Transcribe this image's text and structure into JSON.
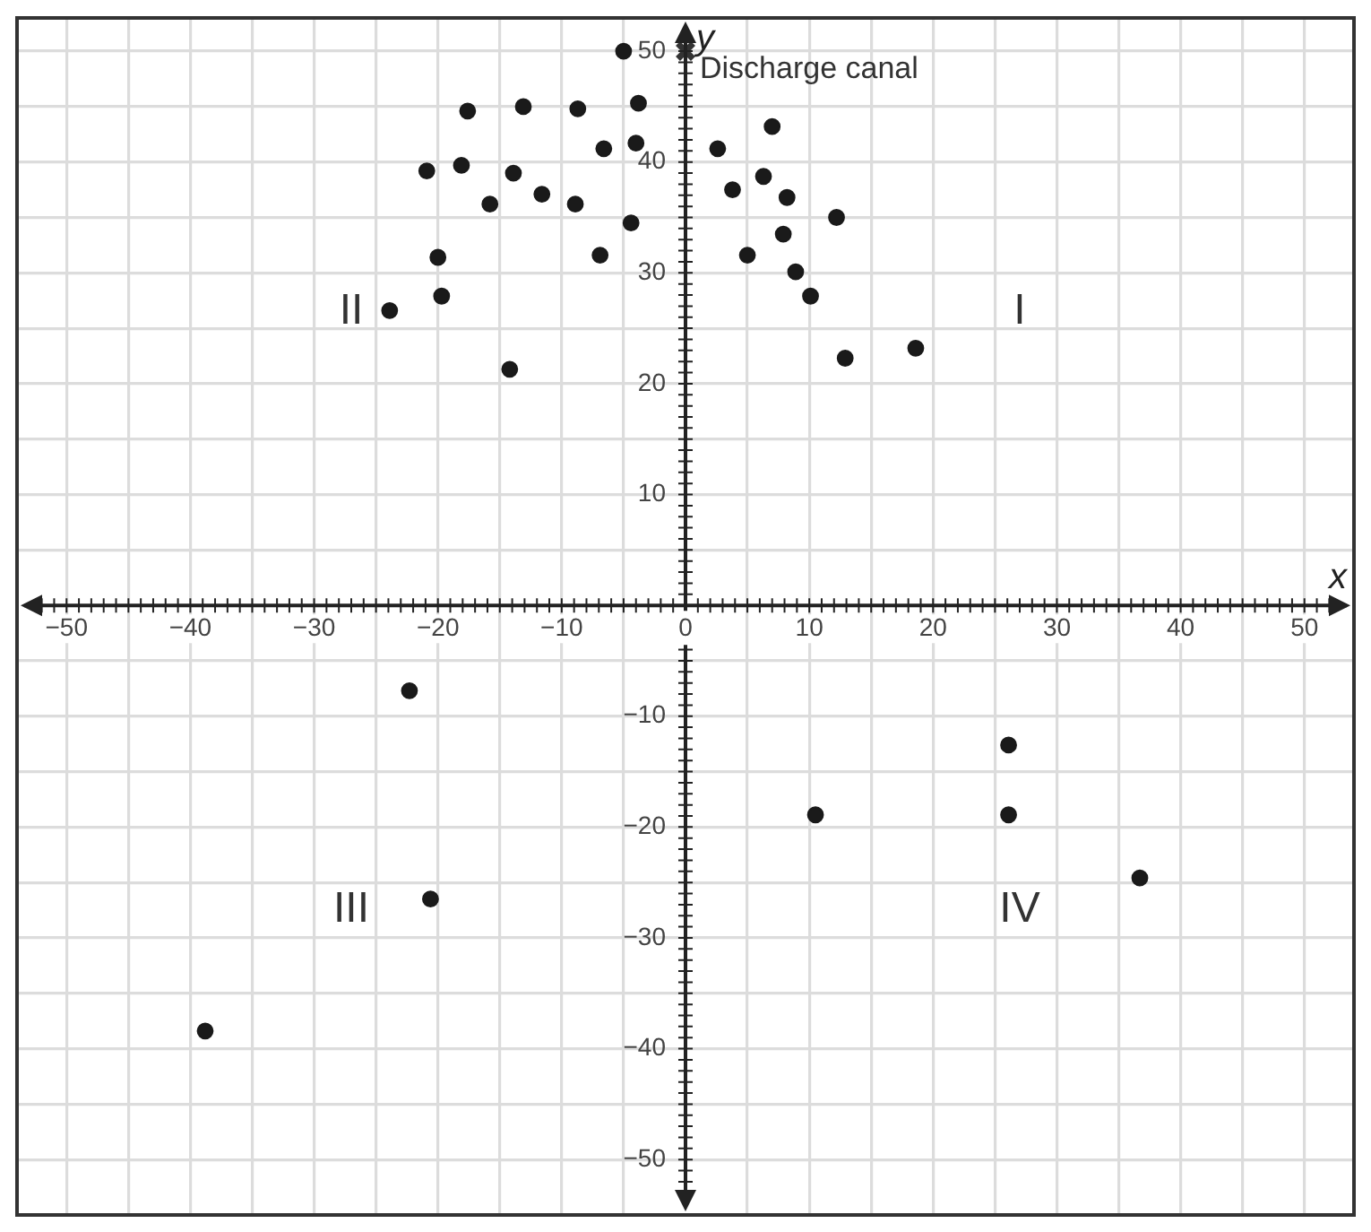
{
  "chart_data": {
    "type": "scatter",
    "xlabel": "x",
    "ylabel": "y",
    "xlim": [
      -54,
      54
    ],
    "ylim": [
      -55,
      53
    ],
    "xticks": [
      {
        "value": -50,
        "label": "−50"
      },
      {
        "value": -45,
        "label": null
      },
      {
        "value": -40,
        "label": "−40"
      },
      {
        "value": -35,
        "label": null
      },
      {
        "value": -30,
        "label": "−30"
      },
      {
        "value": -25,
        "label": null
      },
      {
        "value": -20,
        "label": "−20"
      },
      {
        "value": -15,
        "label": null
      },
      {
        "value": -10,
        "label": "−10"
      },
      {
        "value": -5,
        "label": null
      },
      0,
      {
        "value": 5,
        "label": null
      },
      10,
      {
        "value": 15,
        "label": null
      },
      20,
      {
        "value": 25,
        "label": null
      },
      30,
      {
        "value": 35,
        "label": null
      },
      40,
      {
        "value": 45,
        "label": null
      },
      50
    ],
    "yticks": [
      {
        "value": -50,
        "label": "−50"
      },
      {
        "value": -45,
        "label": null
      },
      {
        "value": -40,
        "label": "−40"
      },
      {
        "value": -35,
        "label": null
      },
      {
        "value": -30,
        "label": "−30"
      },
      {
        "value": -25,
        "label": null
      },
      {
        "value": -20,
        "label": "−20"
      },
      {
        "value": -15,
        "label": null
      },
      {
        "value": -10,
        "label": "−10"
      },
      {
        "value": -5,
        "label": null
      },
      {
        "value": 0,
        "label": null
      },
      {
        "value": 5,
        "label": null
      },
      10,
      {
        "value": 15,
        "label": null
      },
      20,
      {
        "value": 25,
        "label": null
      },
      30,
      {
        "value": 35,
        "label": null
      },
      40,
      {
        "value": 45,
        "label": null
      },
      50
    ],
    "grid": true,
    "legend": false,
    "series": [
      {
        "type": "scatter",
        "color": "#1a1a1a",
        "marker": "circle",
        "x": [
          -5,
          -17.6,
          -13.1,
          -8.7,
          -3.8,
          -6.6,
          -4,
          -20.9,
          -18.1,
          -13.9,
          -15.8,
          -11.6,
          -8.9,
          -4.4,
          -6.9,
          -20,
          -19.7,
          -23.9,
          -14.2,
          7,
          2.6,
          3.8,
          6.3,
          8.2,
          12.2,
          7.9,
          5,
          8.9,
          10.1,
          12.9,
          18.6,
          -22.3,
          -20.6,
          -38.8,
          10.5,
          26.1,
          26.1,
          36.7
        ],
        "values": [
          50,
          44.6,
          45,
          44.8,
          45.3,
          41.2,
          41.7,
          39.2,
          39.7,
          39,
          36.2,
          37.1,
          36.2,
          34.5,
          31.6,
          31.4,
          27.9,
          26.6,
          21.3,
          43.2,
          41.2,
          37.5,
          38.7,
          36.8,
          35,
          33.5,
          31.6,
          30.1,
          27.9,
          22.3,
          23.2,
          -7.7,
          -26.5,
          -38.4,
          -18.9,
          -12.6,
          -18.9,
          -24.6
        ]
      },
      {
        "type": "scatter",
        "color": "#333333",
        "marker": "cross",
        "x": [
          0
        ],
        "values": [
          50
        ]
      }
    ],
    "annotations": [
      {
        "text": "Discharge canal",
        "x": 0,
        "y": 50
      },
      "I",
      "II",
      "III",
      "IV"
    ]
  }
}
